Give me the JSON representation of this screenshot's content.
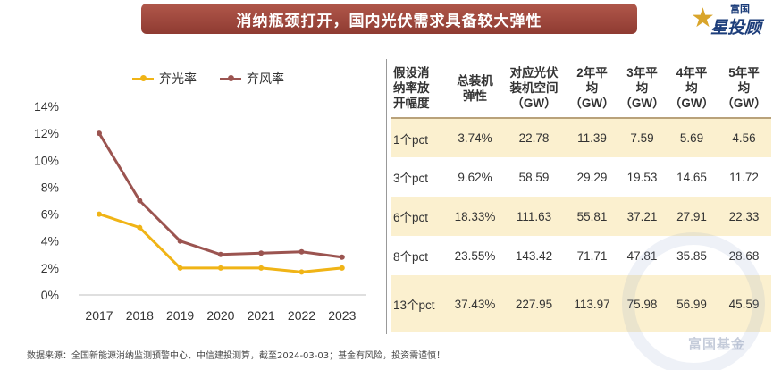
{
  "banner": {
    "title": "消纳瓶颈打开，国内光伏需求具备较大弹性"
  },
  "logo": {
    "brand_top": "富国",
    "brand_main": "星投顾",
    "star": "★"
  },
  "chart_data": {
    "type": "line",
    "x": [
      "2017",
      "2018",
      "2019",
      "2020",
      "2021",
      "2022",
      "2023"
    ],
    "series": [
      {
        "name": "弃光率",
        "color": "#f0b416",
        "values": [
          6.0,
          5.0,
          2.0,
          2.0,
          2.0,
          1.7,
          2.0
        ]
      },
      {
        "name": "弃风率",
        "color": "#9b5450",
        "values": [
          12.0,
          7.0,
          4.0,
          3.0,
          3.1,
          3.2,
          2.8
        ]
      }
    ],
    "ylim": [
      0,
      14
    ],
    "yticks": [
      0,
      2,
      4,
      6,
      8,
      10,
      12,
      14
    ],
    "ytick_labels": [
      "0%",
      "2%",
      "4%",
      "6%",
      "8%",
      "10%",
      "12%",
      "14%"
    ],
    "legend": "top",
    "grid": false,
    "title": "",
    "xlabel": "",
    "ylabel": ""
  },
  "table": {
    "headers": [
      [
        "假设消",
        "纳率放",
        "开幅度"
      ],
      [
        "总装机",
        "弹性"
      ],
      [
        "对应光伏",
        "装机空间",
        "（GW）"
      ],
      [
        "2年平",
        "均",
        "（GW）"
      ],
      [
        "3年平",
        "均",
        "（GW）"
      ],
      [
        "4年平",
        "均",
        "（GW）"
      ],
      [
        "5年平",
        "均",
        "（GW）"
      ]
    ],
    "rows": [
      [
        "1个pct",
        "3.74%",
        "22.78",
        "11.39",
        "7.59",
        "5.69",
        "4.56"
      ],
      [
        "3个pct",
        "9.62%",
        "58.59",
        "29.29",
        "19.53",
        "14.65",
        "11.72"
      ],
      [
        "6个pct",
        "18.33%",
        "111.63",
        "55.81",
        "37.21",
        "27.91",
        "22.33"
      ],
      [
        "8个pct",
        "23.55%",
        "143.42",
        "71.71",
        "47.81",
        "35.85",
        "28.68"
      ],
      [
        "13个pct",
        "37.43%",
        "227.95",
        "113.97",
        "75.98",
        "56.99",
        "45.59"
      ]
    ]
  },
  "watermark": {
    "text": "富国基金"
  },
  "source": {
    "text": "数据来源：全国新能源消纳监测预警中心、中信建投测算，截至2024-03-03；基金有风险，投资需谨慎！"
  }
}
